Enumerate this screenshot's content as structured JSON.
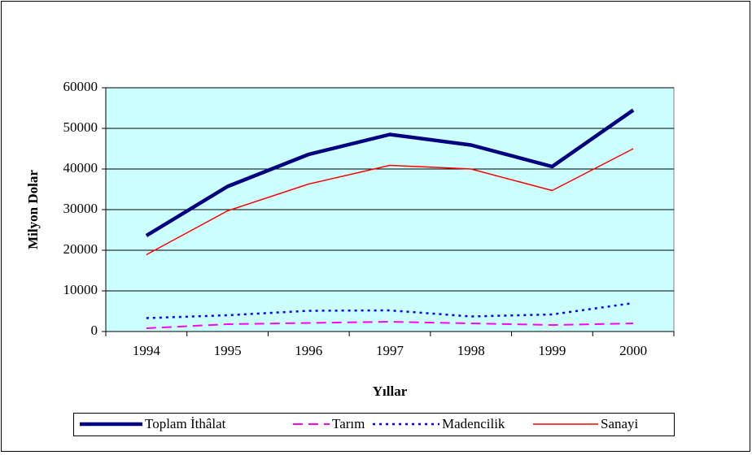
{
  "chart_data": {
    "type": "line",
    "x_label": "Yıllar",
    "y_label": "Milyon Dolar",
    "categories": [
      "1994",
      "1995",
      "1996",
      "1997",
      "1998",
      "1999",
      "2000"
    ],
    "series": [
      {
        "name": "Toplam İthâlat",
        "color": "#000080",
        "style": "solid",
        "values": [
          23600,
          35700,
          43600,
          48500,
          45900,
          40600,
          54500
        ]
      },
      {
        "name": "Tarım",
        "color": "#ff00ff",
        "style": "dashed",
        "values": [
          800,
          1800,
          2100,
          2400,
          2000,
          1600,
          2000
        ]
      },
      {
        "name": "Madencilik",
        "color": "#0000ff",
        "style": "dotted",
        "values": [
          3300,
          4000,
          5100,
          5200,
          3700,
          4200,
          7000
        ]
      },
      {
        "name": "Sanayi",
        "color": "#ff0000",
        "style": "solid",
        "values": [
          18900,
          29700,
          36300,
          40900,
          40000,
          34700,
          45000
        ]
      }
    ],
    "ylim": [
      0,
      60000
    ],
    "yticks": [
      0,
      10000,
      20000,
      30000,
      40000,
      50000,
      60000
    ],
    "grid": true,
    "legend": "bottom",
    "plot_background": "#ccffff"
  }
}
